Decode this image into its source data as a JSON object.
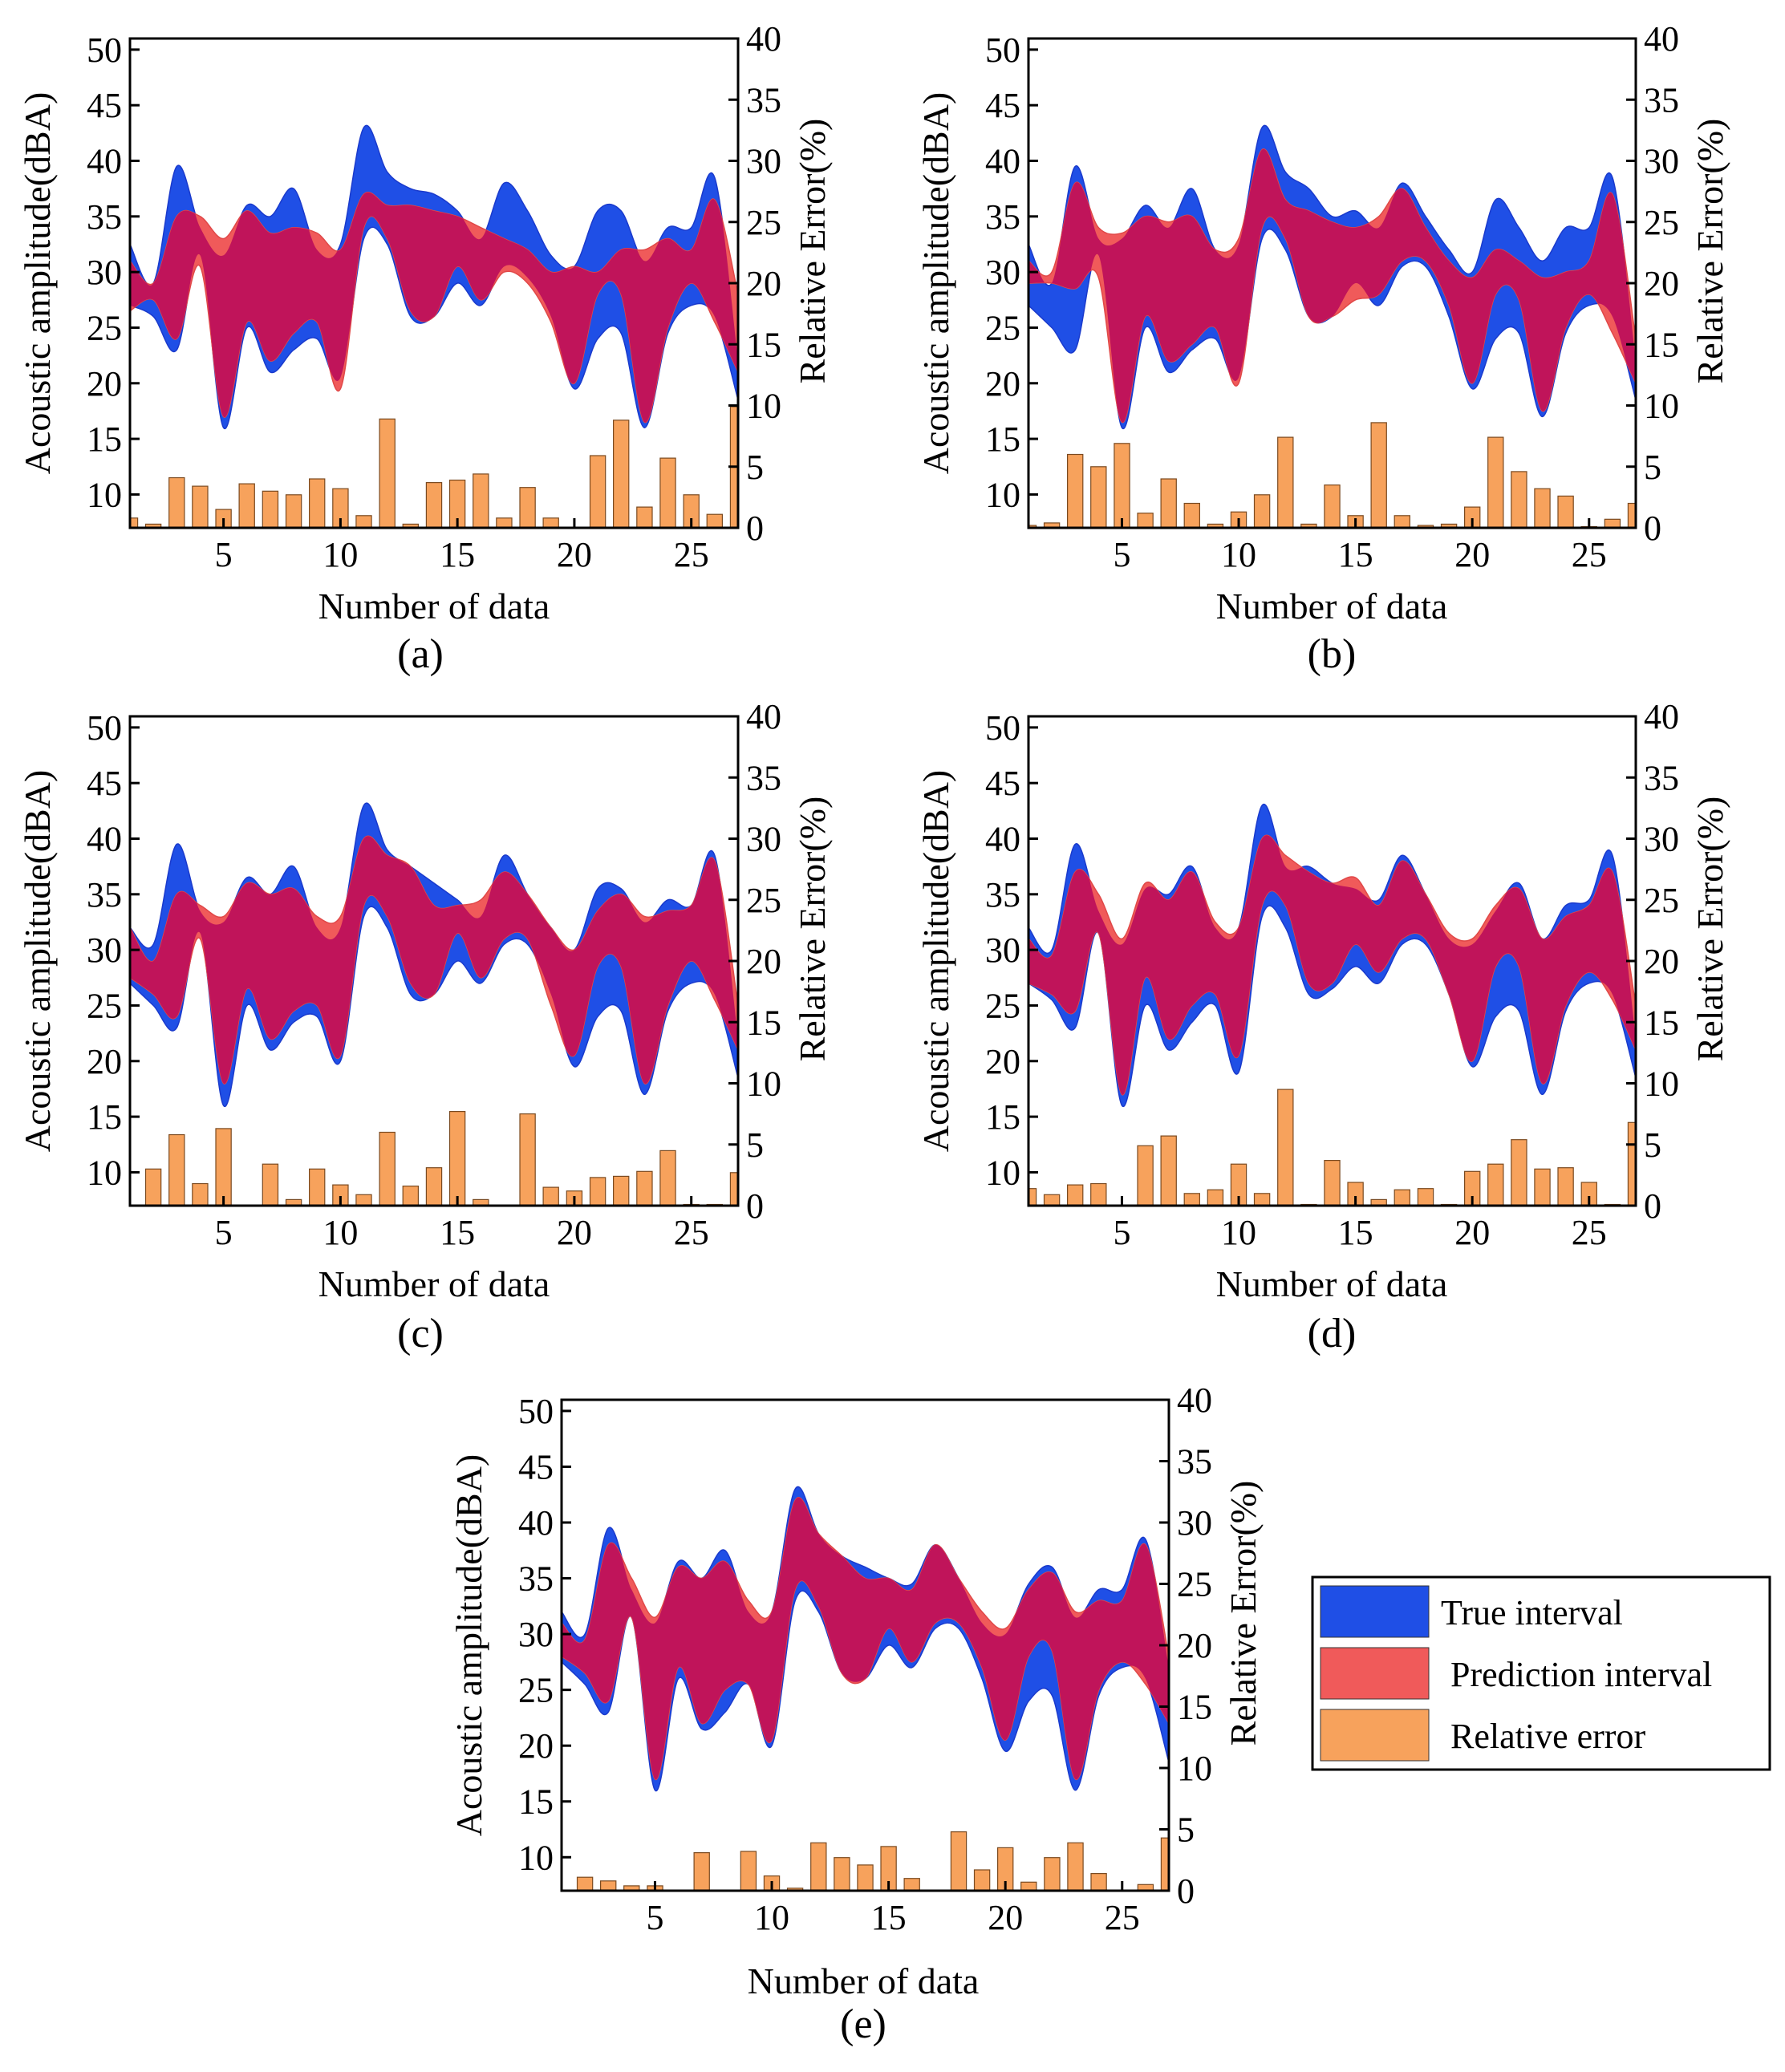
{
  "figure": {
    "legend": {
      "entries": [
        {
          "label": "True interval",
          "color": "#1f4fe6"
        },
        {
          "label": "Prediction interval",
          "color": "#f05a5a"
        },
        {
          "label": "Relative error",
          "color": "#f7a25c"
        }
      ]
    },
    "overlap_color": "#c0145a",
    "bar_edge_color": "#7a4a20"
  },
  "chart_data": [
    {
      "type": "area+bar",
      "caption": "(a)",
      "xlabel": "Number of data",
      "ylabel_left": "Acoustic amplitude(dBA)",
      "ylabel_right": "Relative Error(%)",
      "xlim": [
        1,
        27
      ],
      "ylim_left": [
        7,
        51
      ],
      "ylim_right": [
        0,
        40
      ],
      "xticks": [
        5,
        10,
        15,
        20,
        25
      ],
      "yticks_left": [
        10,
        15,
        20,
        25,
        30,
        35,
        40,
        45,
        50
      ],
      "yticks_right": [
        0,
        5,
        10,
        15,
        20,
        25,
        30,
        35,
        40
      ],
      "x": [
        1,
        2,
        3,
        4,
        5,
        6,
        7,
        8,
        9,
        10,
        11,
        12,
        13,
        14,
        15,
        16,
        17,
        18,
        19,
        20,
        21,
        22,
        23,
        24,
        25,
        26,
        27
      ],
      "true_upper": [
        32.5,
        29,
        39.5,
        34,
        31.5,
        36,
        35,
        37.5,
        32,
        32.5,
        43,
        39,
        37.5,
        37,
        35.5,
        33,
        38,
        35.5,
        31.5,
        30.5,
        35.5,
        35.5,
        31,
        34,
        34,
        38.5,
        22
      ],
      "true_lower": [
        27,
        26,
        23,
        31.5,
        16,
        25,
        21,
        23,
        24,
        20.5,
        33,
        32.5,
        26,
        26,
        29,
        27,
        30.5,
        29.5,
        26,
        19.5,
        24,
        24.5,
        16,
        24.5,
        27,
        26,
        18.5
      ],
      "pred_upper": [
        31,
        29,
        35,
        35,
        33,
        35.5,
        33.5,
        34,
        33.5,
        32,
        37,
        36,
        36,
        35.5,
        35,
        34,
        33,
        32,
        30,
        30.5,
        30,
        32,
        32,
        33,
        32,
        36.5,
        28
      ],
      "pred_lower": [
        26.5,
        27.5,
        24,
        30.5,
        17,
        25.5,
        22,
        24.5,
        25.5,
        19.5,
        34,
        33,
        26.5,
        26,
        30.5,
        27.5,
        30,
        29,
        25.5,
        20,
        28,
        28,
        16.5,
        25,
        29,
        25.5,
        21
      ],
      "relative_error": [
        0.8,
        0.3,
        4.1,
        3.4,
        1.5,
        3.6,
        3.0,
        2.7,
        4.0,
        3.2,
        1.0,
        8.9,
        0.3,
        3.7,
        3.9,
        4.4,
        0.8,
        3.3,
        0.8,
        0,
        5.9,
        8.8,
        1.7,
        5.7,
        2.7,
        1.1,
        9.9
      ]
    },
    {
      "type": "area+bar",
      "caption": "(b)",
      "xlabel": "Number of data",
      "ylabel_left": "Acoustic amplitude(dBA)",
      "ylabel_right": "Relative Error(%)",
      "xlim": [
        1,
        27
      ],
      "ylim_left": [
        7,
        51
      ],
      "ylim_right": [
        0,
        40
      ],
      "xticks": [
        5,
        10,
        15,
        20,
        25
      ],
      "yticks_left": [
        10,
        15,
        20,
        25,
        30,
        35,
        40,
        45,
        50
      ],
      "yticks_right": [
        0,
        5,
        10,
        15,
        20,
        25,
        30,
        35,
        40
      ],
      "x": [
        1,
        2,
        3,
        4,
        5,
        6,
        7,
        8,
        9,
        10,
        11,
        12,
        13,
        14,
        15,
        16,
        17,
        18,
        19,
        20,
        21,
        22,
        23,
        24,
        25,
        26,
        27
      ],
      "true_upper": [
        32.5,
        29,
        39.5,
        33,
        33,
        36,
        34,
        37.5,
        32,
        32.5,
        43,
        39,
        37.5,
        35,
        35.5,
        34,
        38,
        35,
        32,
        30,
        36.5,
        34,
        31,
        34,
        34,
        38.5,
        22
      ],
      "true_lower": [
        27,
        25,
        23,
        31.5,
        16,
        25,
        21,
        23,
        24,
        20.5,
        33,
        32,
        26,
        26,
        29,
        27,
        30.5,
        30.5,
        26,
        19.5,
        24,
        24.5,
        17,
        24.5,
        27,
        26,
        18.5
      ],
      "pred_upper": [
        31,
        30,
        38,
        34,
        33.5,
        35,
        34.5,
        35,
        32,
        33,
        41,
        36.5,
        35.5,
        34.5,
        34,
        35,
        37.5,
        34,
        31,
        29.5,
        32,
        31,
        29.5,
        30,
        31,
        37,
        24
      ],
      "pred_lower": [
        29,
        29,
        28.5,
        29.5,
        16.5,
        26,
        22,
        23.5,
        25,
        20,
        34,
        33,
        26,
        26,
        27.5,
        28,
        31,
        31,
        27,
        20,
        28,
        27.5,
        17.5,
        25,
        28,
        24.5,
        20
      ],
      "relative_error": [
        0.2,
        0.4,
        6.0,
        5.0,
        6.9,
        1.2,
        4.0,
        2.0,
        0.3,
        1.3,
        2.7,
        7.4,
        0.3,
        3.5,
        1.0,
        8.6,
        1.0,
        0.2,
        0.3,
        1.7,
        7.4,
        4.6,
        3.2,
        2.6,
        0.1,
        0.7,
        2.0
      ]
    },
    {
      "type": "area+bar",
      "caption": "(c)",
      "xlabel": "Number of data",
      "ylabel_left": "Acoustic amplitude(dBA)",
      "ylabel_right": "Relative Error(%)",
      "xlim": [
        1,
        27
      ],
      "ylim_left": [
        7,
        51
      ],
      "ylim_right": [
        0,
        40
      ],
      "xticks": [
        5,
        10,
        15,
        20,
        25
      ],
      "yticks_left": [
        10,
        15,
        20,
        25,
        30,
        35,
        40,
        45,
        50
      ],
      "yticks_right": [
        0,
        5,
        10,
        15,
        20,
        25,
        30,
        35,
        40
      ],
      "x": [
        1,
        2,
        3,
        4,
        5,
        6,
        7,
        8,
        9,
        10,
        11,
        12,
        13,
        14,
        15,
        16,
        17,
        18,
        19,
        20,
        21,
        22,
        23,
        24,
        25,
        26,
        27
      ],
      "true_upper": [
        32,
        30.5,
        39.5,
        33.5,
        32.5,
        36.5,
        35,
        37.5,
        32,
        32,
        43,
        39,
        37.5,
        36,
        34.5,
        33,
        38.5,
        35,
        32,
        30,
        35.5,
        35.5,
        32.5,
        34.5,
        34,
        38.5,
        22
      ],
      "true_lower": [
        27,
        25,
        23,
        31.5,
        16,
        25,
        21,
        23.5,
        24,
        20,
        33,
        32,
        26,
        26,
        29,
        27,
        30.5,
        30.5,
        26,
        19.5,
        24,
        24.5,
        17,
        24.5,
        27,
        26,
        18.5
      ],
      "pred_upper": [
        32,
        29,
        35,
        34,
        33,
        36,
        35,
        35.5,
        33,
        33,
        40,
        38.5,
        37.5,
        34,
        34,
        34.5,
        37,
        35,
        32,
        30,
        33.5,
        35,
        33,
        33.5,
        34,
        38,
        25
      ],
      "pred_lower": [
        27.5,
        26,
        24,
        31,
        18,
        26.5,
        22,
        24.5,
        25,
        20.5,
        34,
        33,
        27,
        26,
        31.5,
        27.5,
        31,
        31,
        25,
        20.5,
        28.5,
        28.5,
        18,
        25,
        29,
        25.5,
        21
      ],
      "relative_error": [
        0,
        3.0,
        5.8,
        1.8,
        6.3,
        0,
        3.4,
        0.5,
        3.0,
        1.7,
        0.9,
        6.0,
        1.6,
        3.1,
        7.7,
        0.5,
        0,
        7.5,
        1.5,
        1.2,
        2.3,
        2.4,
        2.8,
        4.5,
        0.1,
        0.1,
        2.7
      ]
    },
    {
      "type": "area+bar",
      "caption": "(d)",
      "xlabel": "Number of data",
      "ylabel_left": "Acoustic amplitude(dBA)",
      "ylabel_right": "Relative Error(%)",
      "xlim": [
        1,
        27
      ],
      "ylim_left": [
        7,
        51
      ],
      "ylim_right": [
        0,
        40
      ],
      "xticks": [
        5,
        10,
        15,
        20,
        25
      ],
      "yticks_left": [
        10,
        15,
        20,
        25,
        30,
        35,
        40,
        45,
        50
      ],
      "yticks_right": [
        0,
        5,
        10,
        15,
        20,
        25,
        30,
        35,
        40
      ],
      "x": [
        1,
        2,
        3,
        4,
        5,
        6,
        7,
        8,
        9,
        10,
        11,
        12,
        13,
        14,
        15,
        16,
        17,
        18,
        19,
        20,
        21,
        22,
        23,
        24,
        25,
        26,
        27
      ],
      "true_upper": [
        32,
        30,
        39.5,
        33.5,
        30.5,
        35.5,
        35,
        37.5,
        32,
        32,
        43,
        37.5,
        37.5,
        36,
        35.5,
        34.5,
        38.5,
        35,
        31,
        30.5,
        33.5,
        36,
        31,
        34,
        34.5,
        38.5,
        22
      ],
      "true_lower": [
        27,
        25.5,
        23,
        31.5,
        16,
        25,
        21,
        23.5,
        25,
        19,
        33,
        32,
        26,
        26.5,
        28.5,
        27,
        30.5,
        30.5,
        26,
        19.5,
        24,
        24.5,
        17,
        24.5,
        27,
        26,
        18.5
      ],
      "pred_upper": [
        31,
        29.5,
        37,
        35,
        31,
        36,
        34.5,
        37,
        32.5,
        32,
        40,
        38.5,
        37,
        36,
        36.5,
        34,
        38,
        35,
        31.5,
        31,
        34,
        35.5,
        31,
        33,
        34,
        37,
        25
      ],
      "pred_lower": [
        27,
        26,
        24.5,
        31.5,
        17,
        27.5,
        22,
        25,
        26,
        20.5,
        34,
        34,
        27,
        27,
        30.5,
        28,
        31,
        31,
        26,
        20,
        28.5,
        28.5,
        18,
        25,
        28,
        25.5,
        21
      ],
      "relative_error": [
        1.4,
        0.9,
        1.7,
        1.8,
        0,
        4.9,
        5.7,
        1.0,
        1.3,
        3.4,
        1.0,
        9.5,
        0.1,
        3.7,
        1.9,
        0.5,
        1.3,
        1.4,
        0.1,
        2.8,
        3.4,
        5.4,
        3.0,
        3.1,
        1.9,
        0.1,
        6.8
      ]
    },
    {
      "type": "area+bar",
      "caption": "(e)",
      "xlabel": "Number of data",
      "ylabel_left": "Acoustic amplitude(dBA)",
      "ylabel_right": "Relative Error(%)",
      "xlim": [
        1,
        27
      ],
      "ylim_left": [
        7,
        51
      ],
      "ylim_right": [
        0,
        40
      ],
      "xticks": [
        5,
        10,
        15,
        20,
        25
      ],
      "yticks_left": [
        10,
        15,
        20,
        25,
        30,
        35,
        40,
        45,
        50
      ],
      "yticks_right": [
        0,
        5,
        10,
        15,
        20,
        25,
        30,
        35,
        40
      ],
      "x": [
        1,
        2,
        3,
        4,
        5,
        6,
        7,
        8,
        9,
        10,
        11,
        12,
        13,
        14,
        15,
        16,
        17,
        18,
        19,
        20,
        21,
        22,
        23,
        24,
        25,
        26,
        27
      ],
      "true_upper": [
        32,
        30,
        39.5,
        34,
        31,
        36.5,
        35,
        37.5,
        32,
        32,
        43,
        39,
        37,
        36,
        35,
        34.5,
        38,
        35,
        31,
        30,
        34.5,
        36,
        31.5,
        34,
        34,
        38.5,
        27
      ],
      "true_lower": [
        27.5,
        25.5,
        23,
        31.5,
        16,
        26,
        21.5,
        23,
        25.5,
        20,
        33,
        32,
        26.5,
        26,
        29,
        27,
        30.5,
        30.5,
        26,
        19.5,
        24,
        24.5,
        16,
        24.5,
        27,
        26,
        18.5
      ],
      "pred_upper": [
        31,
        29.5,
        38,
        35,
        31.5,
        36,
        35,
        36.5,
        33,
        32,
        42,
        39,
        37,
        35,
        35,
        34,
        38,
        35,
        32,
        30.5,
        34,
        35.5,
        32,
        33,
        33,
        38,
        28
      ],
      "pred_lower": [
        28,
        26.5,
        24,
        31.5,
        17,
        27,
        22,
        25,
        25.5,
        20.5,
        34,
        32.5,
        26.5,
        26,
        30.5,
        27.5,
        31,
        31,
        27,
        20.5,
        28,
        28.5,
        17,
        25,
        27.5,
        25.5,
        22
      ],
      "relative_error": [
        0,
        1.1,
        0.8,
        0.4,
        0.4,
        0,
        3.1,
        0,
        3.2,
        1.2,
        0.2,
        3.9,
        2.7,
        2.1,
        3.6,
        1.0,
        0,
        4.8,
        1.7,
        3.5,
        0.7,
        2.7,
        3.9,
        1.4,
        0,
        0.5,
        4.3
      ]
    }
  ]
}
